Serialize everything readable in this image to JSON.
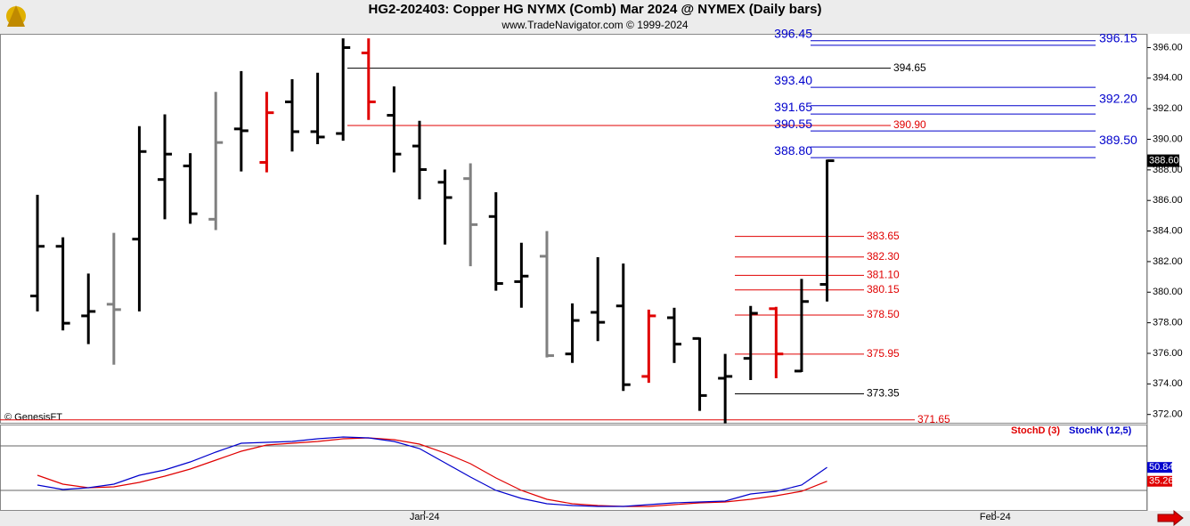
{
  "chart_data": [
    {
      "type": "ohlc",
      "title": "HG2-202403:  Copper HG NYMX (Comb) Mar 2024 @ NYMEX  (Daily bars)",
      "subtitle": "www.TradeNavigator.com © 1999-2024",
      "watermark": "© GenesisFT",
      "categories": [
        null,
        null,
        null,
        null,
        null,
        null,
        null,
        null,
        null,
        null,
        null,
        null,
        null,
        null,
        null,
        null,
        null,
        null,
        null,
        null,
        null,
        null,
        null,
        null,
        null,
        null,
        null,
        null,
        null,
        null,
        null,
        null
      ],
      "open": [
        379.75,
        383.0,
        378.45,
        379.21,
        383.47,
        387.37,
        388.26,
        384.77,
        390.68,
        388.49,
        392.45,
        390.5,
        390.38,
        395.65,
        391.57,
        389.56,
        387.19,
        387.43,
        384.95,
        380.69,
        382.35,
        375.96,
        378.68,
        379.1,
        374.49,
        378.33,
        376.97,
        374.37,
        375.67,
        378.92,
        374.84,
        380.51
      ],
      "high": [
        386.37,
        383.59,
        381.22,
        383.88,
        390.86,
        391.63,
        389.09,
        393.1,
        394.46,
        393.1,
        393.93,
        394.35,
        396.6,
        396.6,
        393.46,
        391.21,
        388.02,
        388.43,
        386.54,
        383.23,
        384.0,
        379.27,
        382.29,
        381.87,
        378.86,
        378.98,
        377.03,
        375.96,
        379.1,
        379.04,
        380.87,
        388.67
      ],
      "low": [
        378.74,
        377.5,
        376.6,
        375.26,
        378.74,
        384.77,
        384.48,
        384.06,
        387.9,
        387.84,
        389.2,
        389.68,
        389.91,
        391.27,
        387.84,
        386.07,
        383.12,
        381.7,
        380.1,
        378.98,
        375.73,
        375.37,
        376.8,
        373.54,
        374.07,
        375.37,
        372.24,
        371.41,
        374.25,
        374.37,
        374.78,
        379.39
      ],
      "close": [
        383.0,
        377.97,
        378.74,
        378.86,
        389.2,
        389.03,
        385.13,
        389.79,
        390.56,
        391.74,
        390.5,
        390.15,
        396.0,
        392.45,
        389.03,
        388.02,
        386.19,
        384.42,
        380.57,
        381.05,
        375.85,
        378.15,
        378.03,
        373.95,
        378.45,
        376.6,
        373.24,
        374.49,
        378.62,
        375.96,
        379.39,
        388.6
      ],
      "colors": [
        "#000000",
        "#000000",
        "#000000",
        "#808080",
        "#000000",
        "#000000",
        "#000000",
        "#808080",
        "#000000",
        "#e00000",
        "#000000",
        "#000000",
        "#000000",
        "#e00000",
        "#000000",
        "#000000",
        "#000000",
        "#808080",
        "#000000",
        "#000000",
        "#808080",
        "#000000",
        "#000000",
        "#000000",
        "#e00000",
        "#000000",
        "#000000",
        "#000000",
        "#000000",
        "#e00000",
        "#000000",
        "#000000"
      ],
      "last_price": {
        "value": 388.6,
        "label": "388.60"
      },
      "levels": [
        {
          "value": 396.45,
          "label": "396.45",
          "color": "#0000cc"
        },
        {
          "value": 396.15,
          "label": "396.15",
          "color": "#0000cc"
        },
        {
          "value": 394.65,
          "label": "394.65",
          "color": "#000000"
        },
        {
          "value": 393.4,
          "label": "393.40",
          "color": "#0000cc"
        },
        {
          "value": 392.2,
          "label": "392.20",
          "color": "#0000cc"
        },
        {
          "value": 391.65,
          "label": "391.65",
          "color": "#0000cc"
        },
        {
          "value": 390.9,
          "label": "390.90",
          "color": "#e00000"
        },
        {
          "value": 390.55,
          "label": "390.55",
          "color": "#0000cc"
        },
        {
          "value": 389.5,
          "label": "389.50",
          "color": "#0000cc"
        },
        {
          "value": 388.8,
          "label": "388.80",
          "color": "#0000cc"
        },
        {
          "value": 383.65,
          "label": "383.65",
          "color": "#e00000"
        },
        {
          "value": 382.3,
          "label": "382.30",
          "color": "#e00000"
        },
        {
          "value": 381.1,
          "label": "381.10",
          "color": "#e00000"
        },
        {
          "value": 380.15,
          "label": "380.15",
          "color": "#e00000"
        },
        {
          "value": 378.5,
          "label": "378.50",
          "color": "#e00000"
        },
        {
          "value": 375.95,
          "label": "375.95",
          "color": "#e00000"
        },
        {
          "value": 373.35,
          "label": "373.35",
          "color": "#000000"
        },
        {
          "value": 371.65,
          "label": "371.65",
          "color": "#e00000"
        }
      ],
      "xlim": [
        -1.47,
        43.57
      ],
      "ylim": [
        371.4,
        396.9
      ],
      "yticks": [
        {
          "value": 372,
          "label": "372.00"
        },
        {
          "value": 374,
          "label": "374.00"
        },
        {
          "value": 376,
          "label": "376.00"
        },
        {
          "value": 378,
          "label": "378.00"
        },
        {
          "value": 380,
          "label": "380.00"
        },
        {
          "value": 382,
          "label": "382.00"
        },
        {
          "value": 384,
          "label": "384.00"
        },
        {
          "value": 386,
          "label": "386.00"
        },
        {
          "value": 388,
          "label": "388.00"
        },
        {
          "value": 390,
          "label": "390.00"
        },
        {
          "value": 392,
          "label": "392.00"
        },
        {
          "value": 394,
          "label": "394.00"
        },
        {
          "value": 396,
          "label": "396.00"
        }
      ]
    },
    {
      "type": "line",
      "xlim": [
        -1.47,
        43.57
      ],
      "xticks": [
        {
          "value": 15.2,
          "label": "Jan-24"
        },
        {
          "value": 37.6,
          "label": "Feb-24"
        }
      ],
      "ylim": [
        2,
        98
      ],
      "hlines": [
        25,
        75
      ],
      "series": [
        {
          "name": "StochD (3)",
          "color": "#e00000",
          "values": [
            42,
            32,
            28,
            29,
            34,
            41,
            49,
            59,
            69,
            76,
            78,
            80,
            83,
            84,
            82,
            77,
            67,
            55,
            39,
            25,
            15,
            10,
            8,
            7,
            7,
            9,
            11,
            12,
            15,
            19,
            24,
            35.26
          ]
        },
        {
          "name": "StochK (12,5)",
          "color": "#0000cc",
          "values": [
            31,
            26,
            28,
            32,
            42,
            48,
            57,
            68,
            78,
            79,
            80,
            83,
            85,
            84,
            80,
            72,
            56,
            40,
            25,
            16,
            10,
            8,
            7,
            7,
            9,
            11,
            12,
            13,
            21,
            24,
            31,
            50.84
          ]
        }
      ]
    }
  ]
}
